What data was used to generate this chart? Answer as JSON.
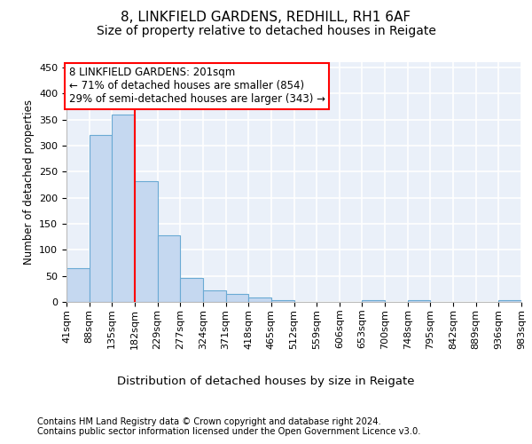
{
  "title1": "8, LINKFIELD GARDENS, REDHILL, RH1 6AF",
  "title2": "Size of property relative to detached houses in Reigate",
  "xlabel": "Distribution of detached houses by size in Reigate",
  "ylabel": "Number of detached properties",
  "footnote1": "Contains HM Land Registry data © Crown copyright and database right 2024.",
  "footnote2": "Contains public sector information licensed under the Open Government Licence v3.0.",
  "annotation_line1": "8 LINKFIELD GARDENS: 201sqm",
  "annotation_line2": "← 71% of detached houses are smaller (854)",
  "annotation_line3": "29% of semi-detached houses are larger (343) →",
  "bar_values": [
    65,
    320,
    360,
    232,
    127,
    46,
    23,
    15,
    8,
    4,
    0,
    0,
    0,
    3,
    0,
    3,
    0,
    0,
    0,
    3
  ],
  "bin_labels": [
    "41sqm",
    "88sqm",
    "135sqm",
    "182sqm",
    "229sqm",
    "277sqm",
    "324sqm",
    "371sqm",
    "418sqm",
    "465sqm",
    "512sqm",
    "559sqm",
    "606sqm",
    "653sqm",
    "700sqm",
    "748sqm",
    "795sqm",
    "842sqm",
    "889sqm",
    "936sqm",
    "983sqm"
  ],
  "bar_color": "#c5d8f0",
  "bar_edge_color": "#6aaad4",
  "vline_color": "red",
  "background_color": "#eaf0f9",
  "grid_color": "white",
  "ylim": [
    0,
    460
  ],
  "yticks": [
    0,
    50,
    100,
    150,
    200,
    250,
    300,
    350,
    400,
    450
  ],
  "annotation_box_color": "white",
  "annotation_box_edge": "red",
  "title1_fontsize": 11,
  "title2_fontsize": 10,
  "xlabel_fontsize": 9.5,
  "ylabel_fontsize": 8.5,
  "footnote_fontsize": 7.2,
  "tick_fontsize": 8,
  "annot_fontsize": 8.5
}
